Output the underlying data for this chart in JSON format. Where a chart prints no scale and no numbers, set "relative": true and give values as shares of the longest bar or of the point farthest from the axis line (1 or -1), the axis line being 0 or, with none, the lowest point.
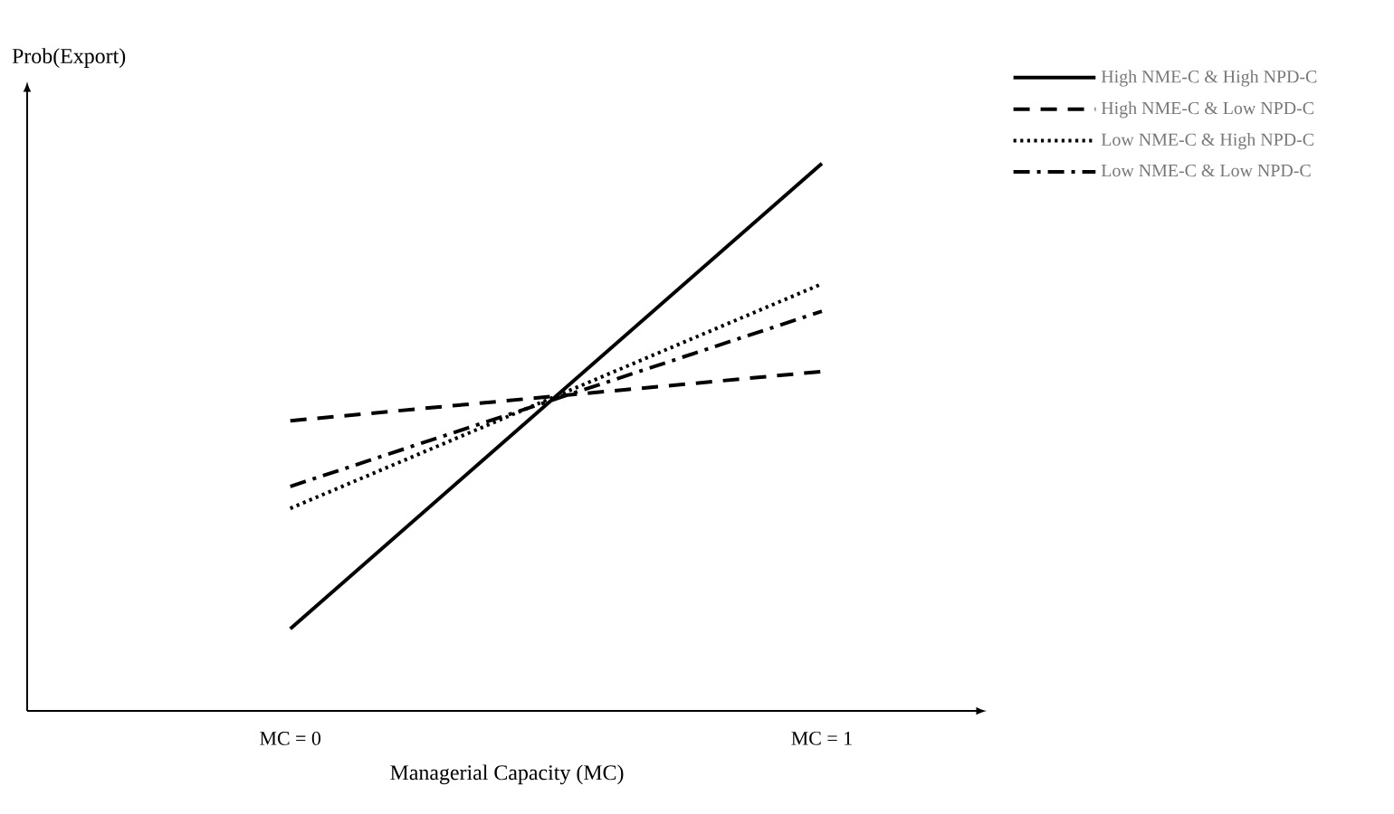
{
  "chart_data": {
    "type": "line",
    "relative": true,
    "xlabel": "Managerial Capacity (MC)",
    "ylabel": "Prob(Export)",
    "categories": [
      "MC = 0",
      "MC = 1"
    ],
    "legend": "top right",
    "series": [
      {
        "name": "High NME-C & High NPD-C",
        "color": "#000000",
        "line_style": "solid",
        "values": [
          0.15,
          1.0
        ]
      },
      {
        "name": "High NME-C & Low NPD-C",
        "color": "#000000",
        "line_style": "dashed",
        "values": [
          0.53,
          0.62
        ]
      },
      {
        "name": "Low NME-C & High NPD-C",
        "color": "#000000",
        "line_style": "dotted",
        "values": [
          0.37,
          0.78
        ]
      },
      {
        "name": "Low NME-C & Low NPD-C",
        "color": "#000000",
        "line_style": "dashdot",
        "values": [
          0.41,
          0.73
        ]
      }
    ]
  }
}
